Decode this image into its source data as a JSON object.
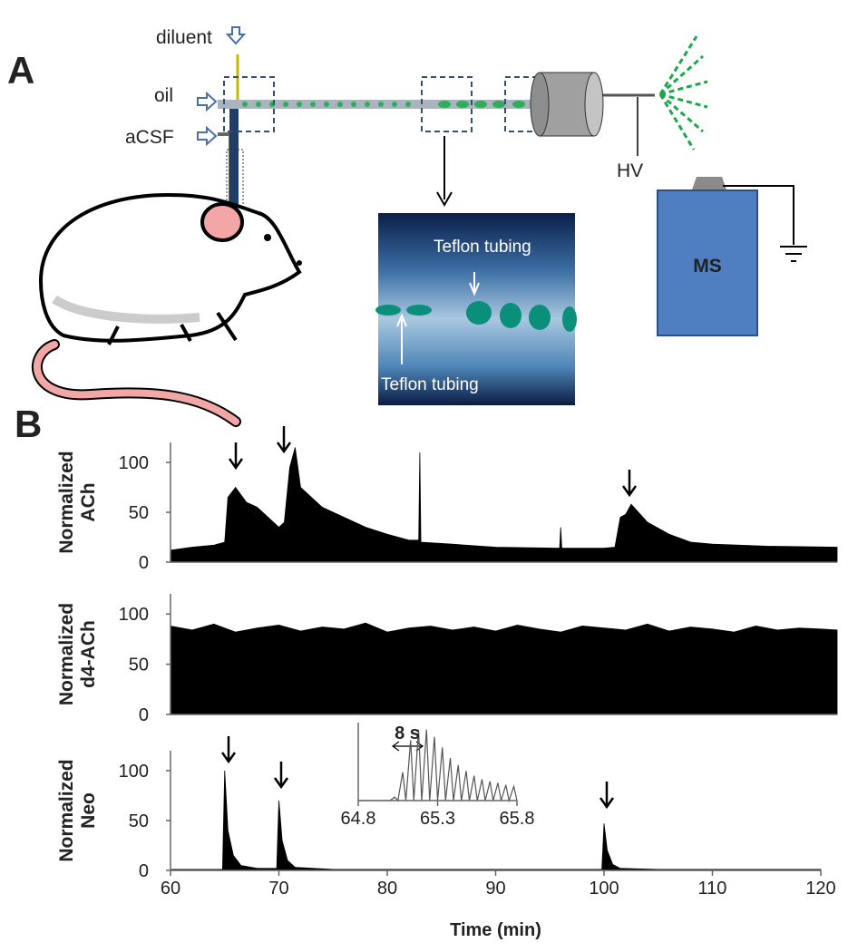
{
  "panel_a": {
    "label": "A",
    "diluent": "diluent",
    "oil": "oil",
    "acsf": "aCSF",
    "hv": "HV",
    "ms": "MS",
    "photo_labels": [
      "Teflon tubing",
      "Teflon tubing"
    ]
  },
  "panel_b_label": "B",
  "chart_data": [
    {
      "type": "area",
      "ylabel": [
        "Normalized",
        "ACh"
      ],
      "color": "#000000",
      "x": [
        60,
        62,
        64,
        65,
        65.3,
        66,
        67,
        68,
        69,
        70,
        70.5,
        71,
        71.5,
        72,
        74,
        76,
        78,
        80,
        82,
        82.9,
        83,
        83.1,
        86,
        90,
        95.9,
        96,
        96.1,
        100,
        101,
        101.5,
        102,
        102.5,
        104,
        106,
        108,
        110,
        115,
        121.5
      ],
      "values": [
        12,
        15,
        17,
        20,
        65,
        75,
        60,
        55,
        45,
        35,
        40,
        95,
        115,
        75,
        55,
        45,
        35,
        28,
        22,
        22,
        110,
        20,
        18,
        15,
        14,
        35,
        14,
        14,
        15,
        45,
        48,
        58,
        40,
        28,
        20,
        18,
        16,
        15
      ],
      "xlim": [
        60,
        121.5
      ],
      "ylim": [
        0,
        120
      ],
      "yticks": [
        0,
        50,
        100
      ]
    },
    {
      "type": "area",
      "ylabel": [
        "Normalized",
        "d4-ACh"
      ],
      "color": "#000000",
      "x": [
        60,
        62,
        64,
        66,
        68,
        70,
        72,
        74,
        76,
        78,
        80,
        82,
        84,
        86,
        88,
        90,
        92,
        94,
        96,
        98,
        100,
        102,
        104,
        106,
        108,
        110,
        112,
        114,
        116,
        118,
        120,
        121.5
      ],
      "values": [
        88,
        84,
        90,
        82,
        86,
        89,
        83,
        87,
        85,
        91,
        82,
        86,
        88,
        84,
        87,
        83,
        89,
        85,
        82,
        88,
        86,
        84,
        90,
        83,
        87,
        85,
        82,
        88,
        84,
        86,
        85,
        84
      ],
      "xlim": [
        60,
        121.5
      ],
      "ylim": [
        0,
        120
      ],
      "yticks": [
        0,
        50,
        100
      ]
    },
    {
      "type": "area",
      "ylabel": [
        "Normalized",
        "Neo"
      ],
      "color": "#000000",
      "x": [
        60,
        64.8,
        65,
        65.3,
        65.8,
        66.5,
        68,
        69.8,
        70,
        70.3,
        70.8,
        71.5,
        75,
        99.8,
        100,
        100.3,
        100.8,
        101.5,
        105,
        120
      ],
      "values": [
        1,
        1,
        100,
        40,
        15,
        5,
        2,
        2,
        70,
        30,
        10,
        3,
        1,
        1,
        47,
        20,
        6,
        2,
        1,
        1
      ],
      "xlim": [
        60,
        120
      ],
      "ylim": [
        0,
        120
      ],
      "yticks": [
        0,
        50,
        100
      ],
      "xticks": [
        60,
        70,
        80,
        90,
        100,
        110,
        120
      ],
      "xlabel": "Time (min)"
    },
    {
      "type": "line",
      "annotation": "8 s",
      "color": "#555555",
      "x": [
        64.8,
        65.0,
        65.03,
        65.05,
        65.08,
        65.1,
        65.13,
        65.15,
        65.18,
        65.2,
        65.23,
        65.25,
        65.28,
        65.3,
        65.33,
        65.35,
        65.38,
        65.4,
        65.43,
        65.45,
        65.48,
        65.5,
        65.53,
        65.55,
        65.58,
        65.6,
        65.63,
        65.65,
        65.68,
        65.7,
        65.73,
        65.75,
        65.78,
        65.8
      ],
      "values": [
        0,
        0,
        5,
        0,
        40,
        0,
        85,
        0,
        100,
        0,
        100,
        0,
        90,
        0,
        75,
        0,
        60,
        0,
        50,
        0,
        42,
        0,
        35,
        0,
        30,
        0,
        27,
        0,
        25,
        0,
        22,
        0,
        20,
        0
      ],
      "xlim": [
        64.8,
        65.8
      ],
      "ylim": [
        0,
        110
      ],
      "xticks": [
        64.8,
        65.3,
        65.8
      ]
    }
  ]
}
